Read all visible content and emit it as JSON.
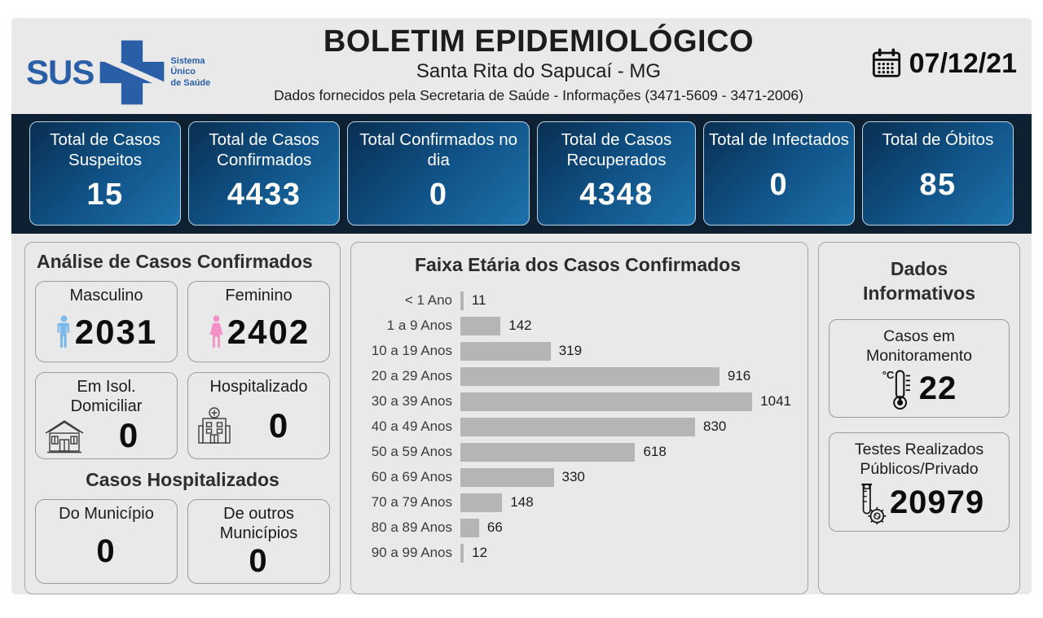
{
  "header": {
    "logo": {
      "name": "SUS",
      "tagline_lines": [
        "Sistema",
        "Único",
        "de Saúde"
      ],
      "icon": "sus-cross-icon"
    },
    "title": "BOLETIM EPIDEMIOLÓGICO",
    "subtitle": "Santa Rita do Sapucaí - MG",
    "info_line": "Dados fornecidos pela Secretaria de Saúde - Informações (3471-5609 - 3471-2006)",
    "date": "07/12/21",
    "date_icon": "calendar-icon"
  },
  "summary_cards": [
    {
      "label": "Total de Casos Suspeitos",
      "value": "15"
    },
    {
      "label": "Total de Casos Confirmados",
      "value": "4433"
    },
    {
      "label": "Total Confirmados no dia",
      "value": "0"
    },
    {
      "label": "Total de Casos Recuperados",
      "value": "4348"
    },
    {
      "label": "Total de Infectados",
      "value": "0"
    },
    {
      "label": "Total de Óbitos",
      "value": "85"
    }
  ],
  "analysis_panel": {
    "title": "Análise de Casos Confirmados",
    "cards": [
      {
        "label": "Masculino",
        "value": "2031",
        "icon": "male-icon"
      },
      {
        "label": "Feminino",
        "value": "2402",
        "icon": "female-icon"
      },
      {
        "label": "Em Isol. Domiciliar",
        "value": "0",
        "icon": "house-icon"
      },
      {
        "label": "Hospitalizado",
        "value": "0",
        "icon": "hospital-icon"
      }
    ],
    "subsection_title": "Casos Hospitalizados",
    "subsection_cards": [
      {
        "label": "Do Município",
        "value": "0"
      },
      {
        "label": "De outros Municípios",
        "value": "0"
      }
    ]
  },
  "chart_data": {
    "type": "bar",
    "orientation": "horizontal",
    "title": "Faixa Etária dos Casos Confirmados",
    "categories": [
      "< 1 Ano",
      "1 a 9 Anos",
      "10 a 19 Anos",
      "20 a 29 Anos",
      "30 a 39 Anos",
      "40 a 49 Anos",
      "50 a 59 Anos",
      "60 a 69 Anos",
      "70 a 79 Anos",
      "80 a 89 Anos",
      "90 a 99 Anos"
    ],
    "values": [
      11,
      142,
      319,
      916,
      1041,
      830,
      618,
      330,
      148,
      66,
      12
    ],
    "xlim": [
      0,
      1170
    ],
    "grid": false,
    "legend": "none",
    "bar_color": "#b5b5b5",
    "value_labels": "right-of-bar"
  },
  "info_panel": {
    "title": "Dados Informativos",
    "cards": [
      {
        "label": "Casos em Monitoramento",
        "value": "22",
        "icon": "thermometer-icon"
      },
      {
        "label": "Testes Realizados Públicos/Privado",
        "value": "20979",
        "icon": "test-tube-icon"
      }
    ]
  },
  "colors": {
    "navy": "#0d2133",
    "sus_blue": "#2a5fa7",
    "male_blue": "#7cb9ea",
    "female_pink": "#f291c6",
    "bar_gray": "#b5b5b5",
    "card_gradient_start": "#092f52",
    "card_gradient_end": "#1d72aa",
    "panel_bg": "#e9e9e9"
  }
}
